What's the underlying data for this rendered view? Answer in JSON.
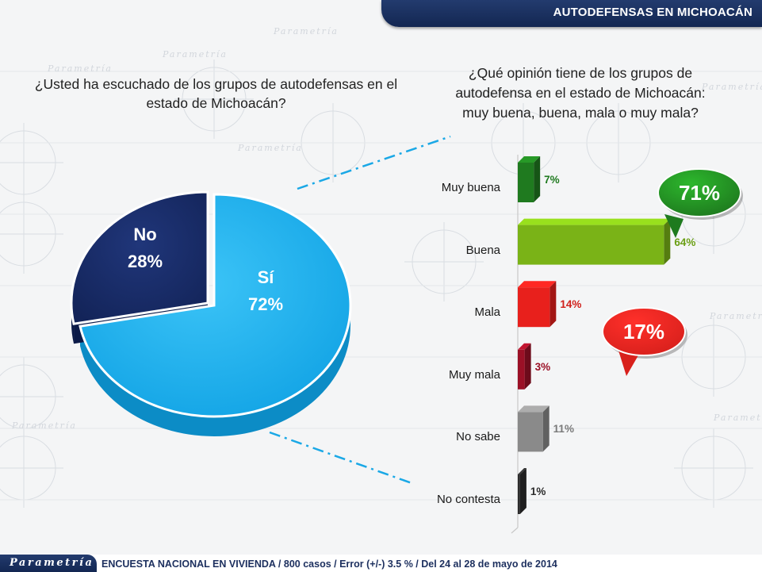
{
  "header": {
    "title": "AUTODEFENSAS EN MICHOACÁN"
  },
  "watermark": {
    "text": "Parametría"
  },
  "questions": {
    "left": "¿Usted ha escuchado de los grupos de autodefensas en el estado de Michoacán?",
    "right_line1": "¿Qué opinión tiene de los grupos de",
    "right_line2": "autodefensa en el estado de Michoacán:",
    "right_line3": "muy buena, buena, mala o muy mala?"
  },
  "chart_data": [
    {
      "type": "pie",
      "categories": [
        "Sí",
        "No"
      ],
      "values": [
        72,
        28
      ],
      "labels": [
        "72%",
        "28%"
      ],
      "colors": [
        "#17aaea",
        "#172a66"
      ]
    },
    {
      "type": "bar",
      "orientation": "horizontal",
      "categories": [
        "Muy buena",
        "Buena",
        "Mala",
        "Muy mala",
        "No sabe",
        "No contesta"
      ],
      "values": [
        7,
        64,
        14,
        3,
        11,
        1
      ],
      "labels": [
        "7%",
        "64%",
        "14%",
        "3%",
        "11%",
        "1%"
      ],
      "colors": [
        "#1f7a1f",
        "#7ab317",
        "#e8201c",
        "#9b1026",
        "#8a8a8a",
        "#2c2c2c"
      ],
      "label_colors": [
        "#1f7a1f",
        "#6a9e14",
        "#d0201b",
        "#9b1026",
        "#7a7a7a",
        "#2c2c2c"
      ],
      "annotations": [
        {
          "text": "71%",
          "color": "#1e7a1e",
          "group": [
            "Muy buena",
            "Buena"
          ]
        },
        {
          "text": "17%",
          "color": "#d8201c",
          "group": [
            "Mala",
            "Muy mala"
          ]
        }
      ]
    }
  ],
  "footer": {
    "logo": "Parametría",
    "text": "ENCUESTA NACIONAL EN VIVIENDA / 800 casos / Error (+/-) 3.5 % / Del 24 al 28 de mayo de 2014"
  }
}
